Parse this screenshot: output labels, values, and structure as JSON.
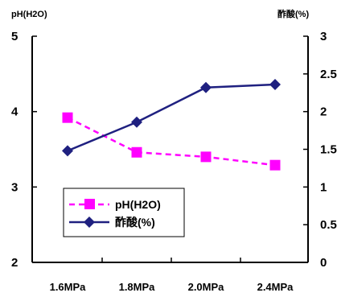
{
  "chart_data": {
    "type": "line",
    "title": "",
    "categories": [
      "1.6MPa",
      "1.8MPa",
      "2.0MPa",
      "2.4MPa"
    ],
    "y_left": {
      "label": "pH(H2O)",
      "range": [
        2,
        5
      ],
      "ticks": [
        "2",
        "3",
        "4",
        "5"
      ]
    },
    "y_right": {
      "label": "酢酸(%)",
      "range": [
        0,
        3
      ],
      "ticks": [
        "0",
        "0.5",
        "1",
        "1.5",
        "2",
        "2.5",
        "3"
      ]
    },
    "series": [
      {
        "name": "pH(H2O)",
        "axis": "left",
        "values": [
          3.92,
          3.46,
          3.4,
          3.29
        ],
        "color": "#ff00ff",
        "line": "dashed",
        "marker": "square"
      },
      {
        "name": "酢酸(%)",
        "axis": "right",
        "values": [
          1.48,
          1.86,
          2.32,
          2.36
        ],
        "color": "#1f2080",
        "line": "solid",
        "marker": "diamond"
      }
    ],
    "legend": {
      "position": "lower-left"
    },
    "grid": false
  }
}
